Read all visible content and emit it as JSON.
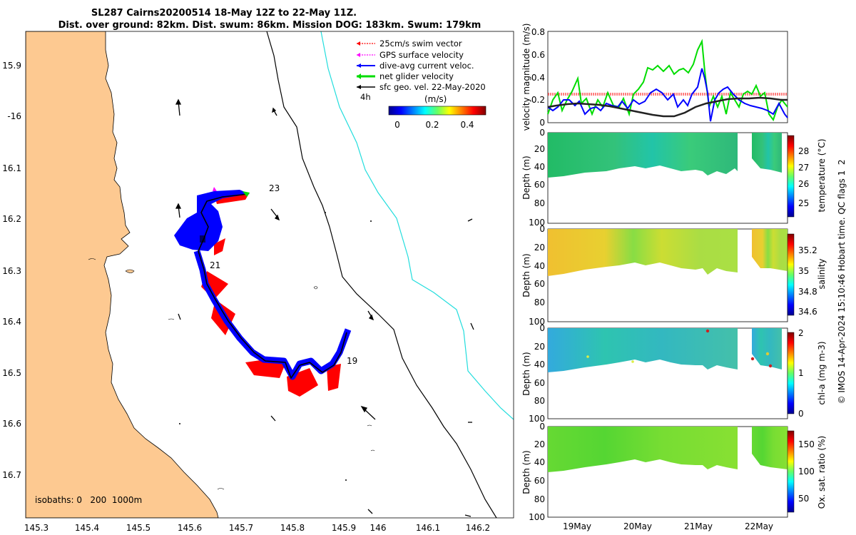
{
  "title": {
    "line1": "SL287 Cairns20200514 18-May 12Z to 22-May 11Z.",
    "line2": "Dist. over ground: 82km. Dist. swum: 86km. Mission DOG: 183km. Swum: 179km"
  },
  "map": {
    "lon_ticks": [
      "145.3",
      "145.4",
      "145.5",
      "145.6",
      "145.7",
      "145.8",
      "145.9",
      "146",
      "146.1",
      "146.2"
    ],
    "lat_ticks": [
      "15.9",
      "-16",
      "16.1",
      "16.2",
      "16.3",
      "16.4",
      "16.5",
      "16.6",
      "16.7"
    ],
    "legend": [
      {
        "label": "25cm/s swim vector",
        "color": "#ff0000",
        "style": "dotted"
      },
      {
        "label": "GPS surface velocity",
        "color": "#ff00ff",
        "style": "dotted"
      },
      {
        "label": "dive-avg current veloc.",
        "color": "#0000ff",
        "style": "solid"
      },
      {
        "label": "net glider velocity",
        "color": "#00dd00",
        "style": "solid"
      },
      {
        "label": "sfc geo. vel. 22-May-2020",
        "color": "#000000",
        "style": "solid"
      }
    ],
    "scale_label": "4h",
    "colorbar": {
      "unit": "(m/s)",
      "ticks": [
        "0",
        "0.2",
        "0.4"
      ]
    },
    "day_labels": [
      "23",
      "21",
      "19"
    ],
    "isobaths_label": "isobaths: 0   200  1000m",
    "colors": {
      "land": "#fdc991",
      "isobath_200": "#000000",
      "isobath_1000": "#22dddd"
    }
  },
  "velocity_panel": {
    "ylabel": "velocity magnitude (m/s)",
    "yticks": [
      "0",
      "0.2",
      "0.4",
      "0.6",
      "0.8"
    ],
    "swim_ref": 0.25
  },
  "sections": [
    {
      "ylabel": "Depth (m)",
      "cblabel": "temperature (°C)",
      "cbticks": [
        "25",
        "26",
        "27",
        "28"
      ],
      "yticks": [
        "0",
        "20",
        "40",
        "60",
        "80",
        "100"
      ]
    },
    {
      "ylabel": "Depth (m)",
      "cblabel": "salinity",
      "cbticks": [
        "34.6",
        "34.8",
        "35",
        "35.2"
      ],
      "yticks": [
        "0",
        "20",
        "40",
        "60",
        "80",
        "100"
      ]
    },
    {
      "ylabel": "Depth (m)",
      "cblabel": "chl-a (mg m-3)",
      "cbticks": [
        "0",
        "1",
        "2"
      ],
      "yticks": [
        "0",
        "20",
        "40",
        "60",
        "80",
        "100"
      ]
    },
    {
      "ylabel": "Depth (m)",
      "cblabel": "Ox. sat. ratio (%)",
      "cbticks": [
        "50",
        "100",
        "150"
      ],
      "yticks": [
        "0",
        "20",
        "40",
        "60",
        "80",
        "100"
      ]
    }
  ],
  "time_ticks": [
    "19May",
    "20May",
    "21May",
    "22May"
  ],
  "credit": "© IMOS 14-Apr-2024 15:10:46 Hobart time. QC flags 1  2"
}
